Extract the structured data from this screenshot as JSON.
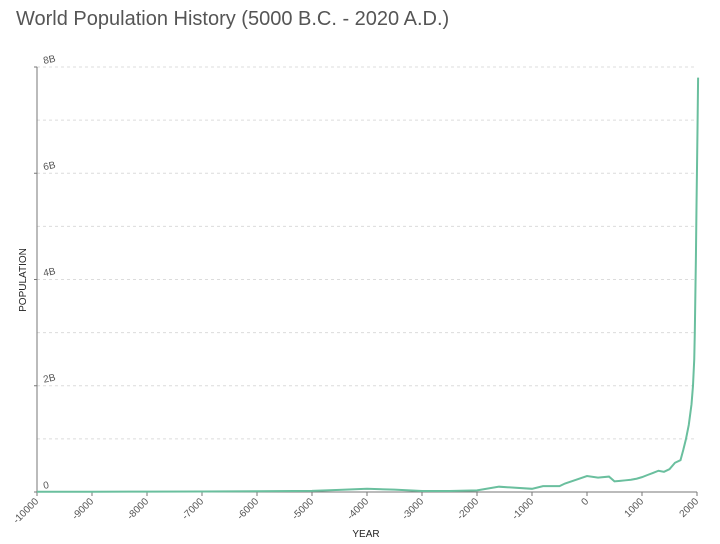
{
  "chart_data": {
    "type": "line",
    "title": "World Population History (5000 B.C. - 2020 A.D.)",
    "xlabel": "YEAR",
    "ylabel": "POPULATION",
    "xlim": [
      -10000,
      2000
    ],
    "ylim": [
      0,
      8000000000
    ],
    "grid": true,
    "line_color": "#6abf9e",
    "x_ticks": [
      {
        "value": -10000,
        "label": "-10000"
      },
      {
        "value": -9000,
        "label": "-9000"
      },
      {
        "value": -8000,
        "label": "-8000"
      },
      {
        "value": -7000,
        "label": "-7000"
      },
      {
        "value": -6000,
        "label": "-6000"
      },
      {
        "value": -5000,
        "label": "-5000"
      },
      {
        "value": -4000,
        "label": "-4000"
      },
      {
        "value": -3000,
        "label": "-3000"
      },
      {
        "value": -2000,
        "label": "-2000"
      },
      {
        "value": -1000,
        "label": "-1000"
      },
      {
        "value": 0,
        "label": "0"
      },
      {
        "value": 1000,
        "label": "1000"
      },
      {
        "value": 2000,
        "label": "2000"
      }
    ],
    "y_ticks": [
      {
        "value": 0,
        "label": "0"
      },
      {
        "value": 2000000000,
        "label": "2B"
      },
      {
        "value": 4000000000,
        "label": "4B"
      },
      {
        "value": 6000000000,
        "label": "6B"
      },
      {
        "value": 8000000000,
        "label": "8B"
      }
    ],
    "series": [
      {
        "x": [
          -10000,
          -9000,
          -8000,
          -7000,
          -6000,
          -5000,
          -4500,
          -4000,
          -3500,
          -3000,
          -2500,
          -2000,
          -1600,
          -1000,
          -800,
          -500,
          -400,
          -200,
          0,
          200,
          400,
          500,
          600,
          700,
          800,
          900,
          1000,
          1100,
          1200,
          1300,
          1400,
          1500,
          1600,
          1700,
          1750,
          1800,
          1850,
          1900,
          1927,
          1950,
          1960,
          1970,
          1980,
          1990,
          2000,
          2010,
          2020
        ],
        "y": [
          4000000,
          5000000,
          7000000,
          10000000,
          14000000,
          22000000,
          40000000,
          60000000,
          45000000,
          20000000,
          20000000,
          30000000,
          100000000,
          60000000,
          110000000,
          110000000,
          160000000,
          230000000,
          300000000,
          270000000,
          290000000,
          200000000,
          210000000,
          220000000,
          230000000,
          250000000,
          280000000,
          320000000,
          360000000,
          400000000,
          380000000,
          430000000,
          550000000,
          600000000,
          790000000,
          1000000000,
          1260000000,
          1650000000,
          2000000000,
          2500000000,
          3000000000,
          3700000000,
          4400000000,
          5300000000,
          6100000000,
          6900000000,
          7800000000
        ]
      }
    ]
  }
}
